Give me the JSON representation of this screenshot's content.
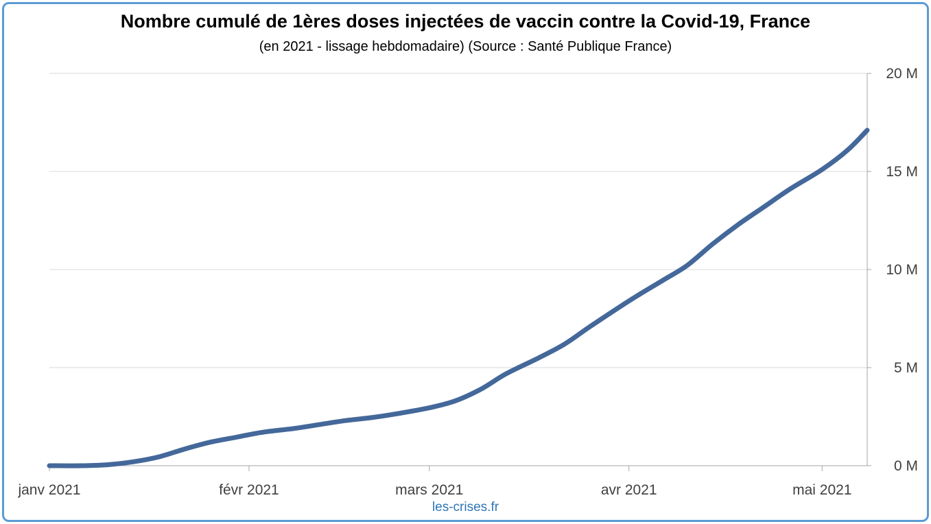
{
  "title": "Nombre cumulé de 1ères doses injectées de vaccin contre la Covid-19, France",
  "subtitle": "(en 2021 - lissage hebdomadaire) (Source : Santé Publique France)",
  "credit": "les-crises.fr",
  "colors": {
    "line": "#44689a",
    "grid": "#d9d9d9",
    "axis": "#a6a6a6",
    "frame": "#5b9bd5",
    "credit": "#2e75b6"
  },
  "chart_data": {
    "type": "line",
    "title": "Nombre cumulé de 1ères doses injectées de vaccin contre la Covid-19, France",
    "subtitle": "(en 2021 - lissage hebdomadaire) (Source : Santé Publique France)",
    "xlabel": "",
    "ylabel": "",
    "x_ticks": [
      {
        "label": "janv 2021",
        "date": "2021-01-01"
      },
      {
        "label": "févr 2021",
        "date": "2021-02-01"
      },
      {
        "label": "mars 2021",
        "date": "2021-03-01"
      },
      {
        "label": "avr 2021",
        "date": "2021-04-01"
      },
      {
        "label": "mai 2021",
        "date": "2021-05-01"
      }
    ],
    "y_ticks": [
      {
        "label": "0 M",
        "value": 0
      },
      {
        "label": "5 M",
        "value": 5
      },
      {
        "label": "10 M",
        "value": 10
      },
      {
        "label": "15 M",
        "value": 15
      },
      {
        "label": "20 M",
        "value": 20
      }
    ],
    "ylim": [
      0,
      20
    ],
    "xlim": [
      "2021-01-01",
      "2021-05-08"
    ],
    "y_axis_side": "right",
    "grid": true,
    "legend": "none",
    "series": [
      {
        "points": [
          [
            "2021-01-01",
            0.0
          ],
          [
            "2021-01-06",
            0.0
          ],
          [
            "2021-01-10",
            0.05
          ],
          [
            "2021-01-14",
            0.2
          ],
          [
            "2021-01-18",
            0.45
          ],
          [
            "2021-01-22",
            0.85
          ],
          [
            "2021-01-26",
            1.2
          ],
          [
            "2021-01-30",
            1.45
          ],
          [
            "2021-02-03",
            1.7
          ],
          [
            "2021-02-08",
            1.9
          ],
          [
            "2021-02-12",
            2.1
          ],
          [
            "2021-02-16",
            2.3
          ],
          [
            "2021-02-20",
            2.45
          ],
          [
            "2021-02-24",
            2.65
          ],
          [
            "2021-03-01",
            2.95
          ],
          [
            "2021-03-05",
            3.3
          ],
          [
            "2021-03-09",
            3.9
          ],
          [
            "2021-03-13",
            4.7
          ],
          [
            "2021-03-18",
            5.5
          ],
          [
            "2021-03-22",
            6.2
          ],
          [
            "2021-03-26",
            7.1
          ],
          [
            "2021-04-01",
            8.4
          ],
          [
            "2021-04-06",
            9.4
          ],
          [
            "2021-04-10",
            10.2
          ],
          [
            "2021-04-14",
            11.3
          ],
          [
            "2021-04-18",
            12.3
          ],
          [
            "2021-04-22",
            13.2
          ],
          [
            "2021-04-26",
            14.1
          ],
          [
            "2021-05-01",
            15.1
          ],
          [
            "2021-05-05",
            16.1
          ],
          [
            "2021-05-08",
            17.1
          ]
        ]
      }
    ]
  }
}
